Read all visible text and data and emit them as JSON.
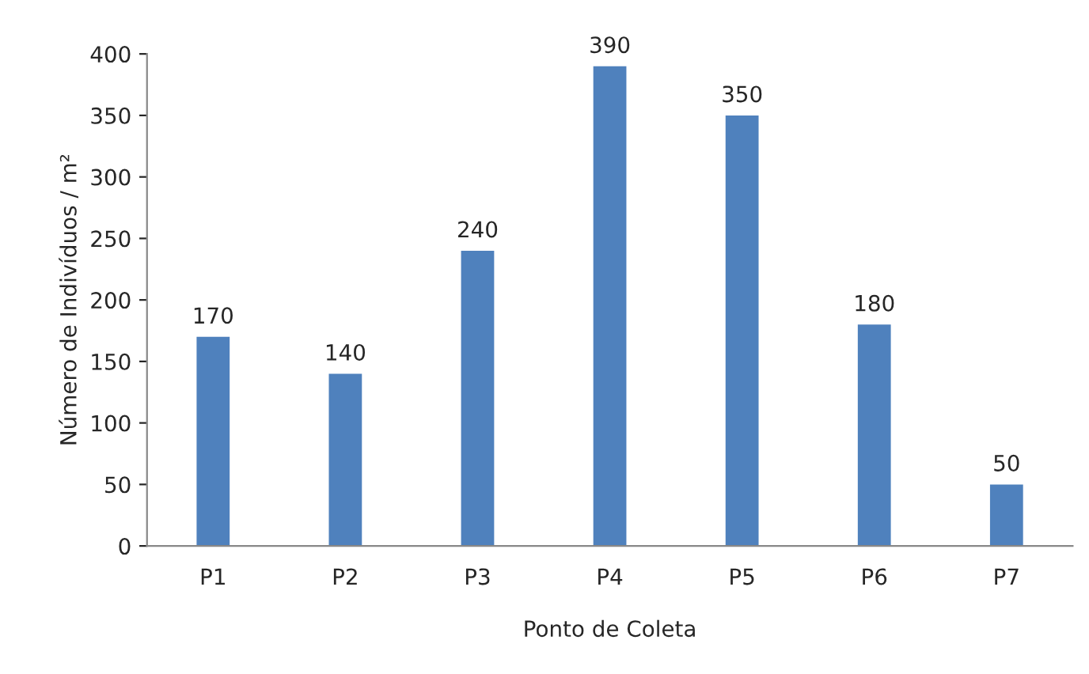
{
  "chart_data": {
    "type": "bar",
    "xlabel": "Ponto de Coleta",
    "ylabel": "Número de Indivíduos / m²",
    "categories": [
      "P1",
      "P2",
      "P3",
      "P4",
      "P5",
      "P6",
      "P7"
    ],
    "values": [
      170,
      140,
      240,
      390,
      350,
      180,
      50
    ],
    "color": "#4f81bd",
    "ylim": [
      0,
      400
    ],
    "yticks": [
      0,
      50,
      100,
      150,
      200,
      250,
      300,
      350,
      400
    ],
    "data_labels": true,
    "grid": false
  }
}
